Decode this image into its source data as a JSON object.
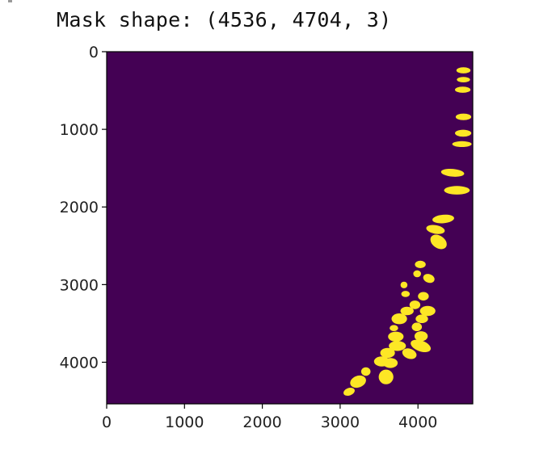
{
  "cell_output": {
    "text": "Mask shape: (4536, 4704, 3)"
  },
  "colors": {
    "background": "#440154",
    "foreground": "#fde725",
    "axis": "#000000"
  },
  "chart_data": {
    "type": "heatmap",
    "title": "",
    "xlabel": "",
    "ylabel": "",
    "colormap": "viridis",
    "xlim": [
      0,
      4704
    ],
    "ylim": [
      4536,
      0
    ],
    "x_ticks": [
      0,
      1000,
      2000,
      3000,
      4000
    ],
    "x_tick_labels": [
      "0",
      "1000",
      "2000",
      "3000",
      "4000"
    ],
    "y_ticks": [
      0,
      1000,
      2000,
      3000,
      4000
    ],
    "y_tick_labels": [
      "0",
      "1000",
      "2000",
      "3000",
      "4000"
    ],
    "grid": false,
    "blobs": [
      {
        "x": 4585,
        "y": 240,
        "w": 180,
        "h": 80,
        "r": 0
      },
      {
        "x": 4585,
        "y": 360,
        "w": 170,
        "h": 70,
        "r": 0
      },
      {
        "x": 4575,
        "y": 490,
        "w": 200,
        "h": 80,
        "r": 0
      },
      {
        "x": 4585,
        "y": 840,
        "w": 200,
        "h": 85,
        "r": 0
      },
      {
        "x": 4580,
        "y": 1050,
        "w": 210,
        "h": 90,
        "r": 0
      },
      {
        "x": 4565,
        "y": 1190,
        "w": 250,
        "h": 75,
        "r": 0
      },
      {
        "x": 4445,
        "y": 1560,
        "w": 300,
        "h": 100,
        "r": 5
      },
      {
        "x": 4500,
        "y": 1785,
        "w": 330,
        "h": 110,
        "r": 0
      },
      {
        "x": 4325,
        "y": 2155,
        "w": 280,
        "h": 110,
        "r": -5
      },
      {
        "x": 4225,
        "y": 2290,
        "w": 240,
        "h": 110,
        "r": 10
      },
      {
        "x": 4265,
        "y": 2450,
        "w": 230,
        "h": 160,
        "r": 35
      },
      {
        "x": 4030,
        "y": 2740,
        "w": 140,
        "h": 95,
        "r": 0
      },
      {
        "x": 3990,
        "y": 2860,
        "w": 100,
        "h": 90,
        "r": 0
      },
      {
        "x": 4140,
        "y": 2920,
        "w": 150,
        "h": 110,
        "r": 20
      },
      {
        "x": 3820,
        "y": 3005,
        "w": 90,
        "h": 85,
        "r": 0
      },
      {
        "x": 3840,
        "y": 3120,
        "w": 110,
        "h": 80,
        "r": 0
      },
      {
        "x": 4070,
        "y": 3150,
        "w": 140,
        "h": 110,
        "r": 0
      },
      {
        "x": 3960,
        "y": 3260,
        "w": 140,
        "h": 110,
        "r": 0
      },
      {
        "x": 4125,
        "y": 3340,
        "w": 200,
        "h": 130,
        "r": 0
      },
      {
        "x": 3860,
        "y": 3340,
        "w": 170,
        "h": 110,
        "r": 0
      },
      {
        "x": 3760,
        "y": 3440,
        "w": 200,
        "h": 140,
        "r": 0
      },
      {
        "x": 4050,
        "y": 3440,
        "w": 160,
        "h": 110,
        "r": 0
      },
      {
        "x": 3985,
        "y": 3545,
        "w": 130,
        "h": 110,
        "r": 0
      },
      {
        "x": 3690,
        "y": 3560,
        "w": 110,
        "h": 80,
        "r": 0
      },
      {
        "x": 3715,
        "y": 3670,
        "w": 200,
        "h": 130,
        "r": 0
      },
      {
        "x": 4040,
        "y": 3665,
        "w": 170,
        "h": 130,
        "r": 0
      },
      {
        "x": 3735,
        "y": 3790,
        "w": 220,
        "h": 130,
        "r": 0
      },
      {
        "x": 4035,
        "y": 3790,
        "w": 270,
        "h": 140,
        "r": 20
      },
      {
        "x": 3610,
        "y": 3880,
        "w": 190,
        "h": 130,
        "r": 0
      },
      {
        "x": 3890,
        "y": 3890,
        "w": 190,
        "h": 130,
        "r": 20
      },
      {
        "x": 3535,
        "y": 3990,
        "w": 200,
        "h": 130,
        "r": 0
      },
      {
        "x": 3645,
        "y": 4010,
        "w": 190,
        "h": 130,
        "r": 0
      },
      {
        "x": 3590,
        "y": 4190,
        "w": 190,
        "h": 190,
        "r": 45
      },
      {
        "x": 3330,
        "y": 4120,
        "w": 120,
        "h": 110,
        "r": 0
      },
      {
        "x": 3230,
        "y": 4250,
        "w": 210,
        "h": 150,
        "r": -20
      },
      {
        "x": 3115,
        "y": 4380,
        "w": 150,
        "h": 95,
        "r": -20
      }
    ]
  }
}
